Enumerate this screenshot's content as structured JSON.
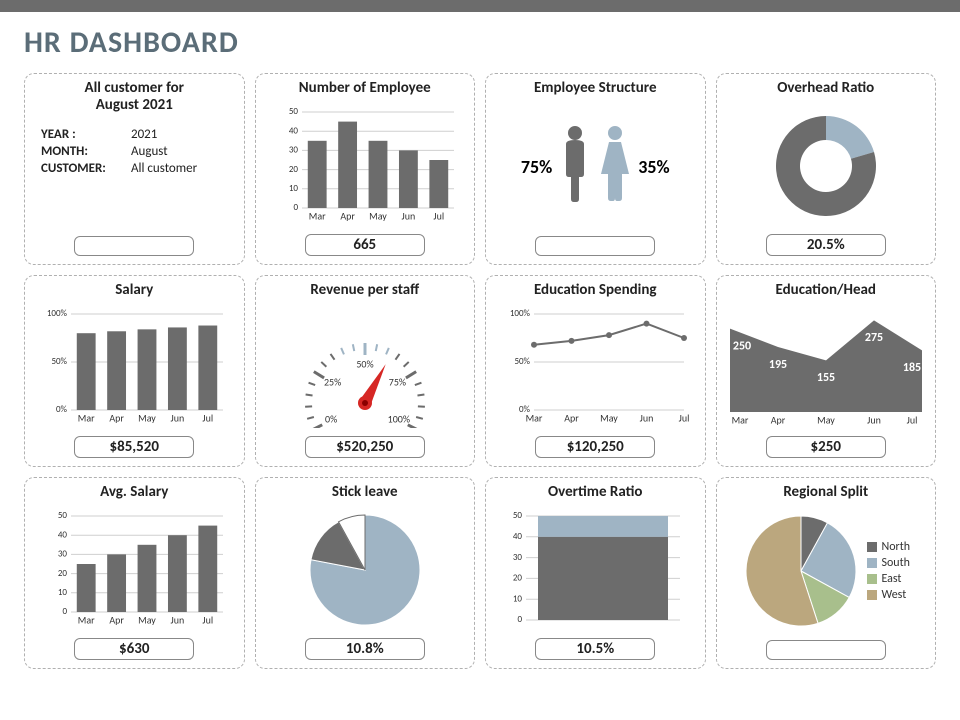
{
  "page": {
    "title": "HR DASHBOARD",
    "topbar_color": "#6c6c6c",
    "title_color": "#5b6d78",
    "card_border_color": "#b0b0b0",
    "bar_color": "#6c6c6c",
    "accent_blue": "#9fb4c4",
    "accent_tan": "#bba77e",
    "accent_green": "#a8bf8c",
    "grid_color": "#cfcfcf",
    "text_color": "#222222"
  },
  "filters": {
    "title_line1": "All customer for",
    "title_line2": "August 2021",
    "year_label": "YEAR :",
    "year_value": "2021",
    "month_label": "MONTH:",
    "month_value": "August",
    "customer_label": "CUSTOMER:",
    "customer_value": "All customer",
    "pill": ""
  },
  "employee_count": {
    "title": "Number of Employee",
    "type": "bar",
    "categories": [
      "Mar",
      "Apr",
      "May",
      "Jun",
      "Jul"
    ],
    "values": [
      35,
      45,
      35,
      30,
      25
    ],
    "yticks": [
      0,
      10,
      20,
      30,
      40,
      50
    ],
    "ylim": [
      0,
      50
    ],
    "bar_color": "#6c6c6c",
    "pill": "665"
  },
  "employee_structure": {
    "title": "Employee Structure",
    "male_pct": "75%",
    "female_pct": "35%",
    "male_color": "#6c6c6c",
    "female_color": "#9fb4c4",
    "pill": ""
  },
  "overhead_ratio": {
    "title": "Overhead Ratio",
    "type": "donut",
    "value": 0.205,
    "ring_bg": "#6c6c6c",
    "ring_fg": "#9fb4c4",
    "pill": "20.5%"
  },
  "salary": {
    "title": "Salary",
    "type": "bar",
    "categories": [
      "Mar",
      "Apr",
      "May",
      "Jun",
      "Jul"
    ],
    "values": [
      80,
      82,
      84,
      86,
      88
    ],
    "yticks_labels": [
      "0%",
      "50%",
      "100%"
    ],
    "yticks": [
      0,
      50,
      100
    ],
    "ylim": [
      0,
      100
    ],
    "bar_color": "#6c6c6c",
    "pill": "$85,520"
  },
  "revenue_per_staff": {
    "title": "Revenue per staff",
    "type": "gauge",
    "ticks": [
      "0%",
      "25%",
      "50%",
      "75%",
      "100%"
    ],
    "needle_value": 0.62,
    "needle_color": "#d62724",
    "tick_color": "#6c6c6c",
    "tick_accent": "#9fb4c4",
    "pill": "$520,250"
  },
  "education_spending": {
    "title": "Education Spending",
    "type": "line",
    "categories": [
      "Mar",
      "Apr",
      "May",
      "Jun",
      "Jul"
    ],
    "values": [
      68,
      72,
      78,
      90,
      75
    ],
    "yticks_labels": [
      "0%",
      "50%",
      "100%"
    ],
    "yticks": [
      0,
      50,
      100
    ],
    "ylim": [
      0,
      100
    ],
    "line_color": "#6c6c6c",
    "pill": "$120,250"
  },
  "education_head": {
    "title": "Education/Head",
    "type": "area",
    "categories": [
      "Mar",
      "Apr",
      "May",
      "Jun",
      "Jul"
    ],
    "values": [
      250,
      195,
      155,
      275,
      185
    ],
    "ylim": [
      0,
      300
    ],
    "area_color": "#6c6c6c",
    "label_color": "#ffffff",
    "pill": "$250"
  },
  "avg_salary": {
    "title": "Avg. Salary",
    "type": "bar",
    "categories": [
      "Mar",
      "Apr",
      "May",
      "Jun",
      "Jul"
    ],
    "values": [
      25,
      30,
      35,
      40,
      45
    ],
    "yticks": [
      0,
      10,
      20,
      30,
      40,
      50
    ],
    "ylim": [
      0,
      50
    ],
    "bar_color": "#6c6c6c",
    "pill": "$630"
  },
  "sick_leave": {
    "title": "Stick leave",
    "type": "pie",
    "slices": [
      {
        "value": 0.78,
        "color": "#9fb4c4"
      },
      {
        "value": 0.14,
        "color": "#6c6c6c"
      },
      {
        "value": 0.08,
        "color": "#ffffff",
        "stroke": "#6c6c6c"
      }
    ],
    "pill": "10.8%"
  },
  "overtime_ratio": {
    "title": "Overtime Ratio",
    "type": "stacked-bar-single",
    "yticks": [
      0,
      10,
      20,
      30,
      40,
      50
    ],
    "ylim": [
      0,
      50
    ],
    "segments": [
      {
        "value": 40,
        "color": "#6c6c6c"
      },
      {
        "value": 10,
        "color": "#9fb4c4"
      }
    ],
    "pill": "10.5%"
  },
  "regional_split": {
    "title": "Regional Split",
    "type": "pie",
    "slices": [
      {
        "label": "North",
        "value": 0.08,
        "color": "#6c6c6c"
      },
      {
        "label": "South",
        "value": 0.25,
        "color": "#9fb4c4"
      },
      {
        "label": "East",
        "value": 0.12,
        "color": "#a8bf8c"
      },
      {
        "label": "West",
        "value": 0.55,
        "color": "#bba77e"
      }
    ],
    "legend": [
      "North",
      "South",
      "East",
      "West"
    ],
    "pill": ""
  }
}
